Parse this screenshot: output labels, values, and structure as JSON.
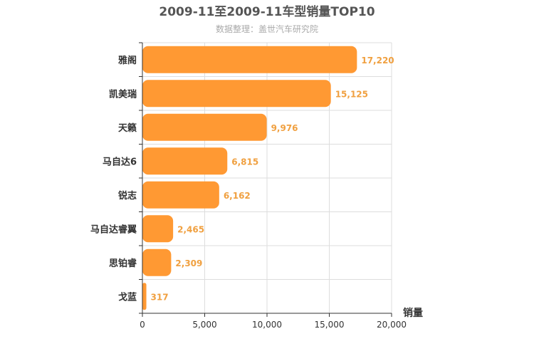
{
  "chart_data": {
    "type": "bar",
    "orientation": "horizontal",
    "title": "2009-11至2009-11车型销量TOP10",
    "subtitle": "数据整理：盖世汽车研究院",
    "xlabel": "销量",
    "ylabel": "",
    "categories": [
      "雅阁",
      "凯美瑞",
      "天籁",
      "马自达6",
      "锐志",
      "马自达睿翼",
      "思铂睿",
      "戈蓝"
    ],
    "values": [
      17220,
      15125,
      9976,
      6815,
      6162,
      2465,
      2309,
      317
    ],
    "value_labels": [
      "17,220",
      "15,125",
      "9,976",
      "6,815",
      "6,162",
      "2,465",
      "2,309",
      "317"
    ],
    "xlim": [
      0,
      20000
    ],
    "ticks": [
      0,
      5000,
      10000,
      15000,
      20000
    ],
    "tick_labels": [
      "0",
      "5,000",
      "10,000",
      "15,000",
      "20,000"
    ],
    "grid": true,
    "colors": {
      "bar": "#ff9933",
      "value": "#f0a040",
      "grid": "#dddddd",
      "axis": "#333333"
    }
  }
}
